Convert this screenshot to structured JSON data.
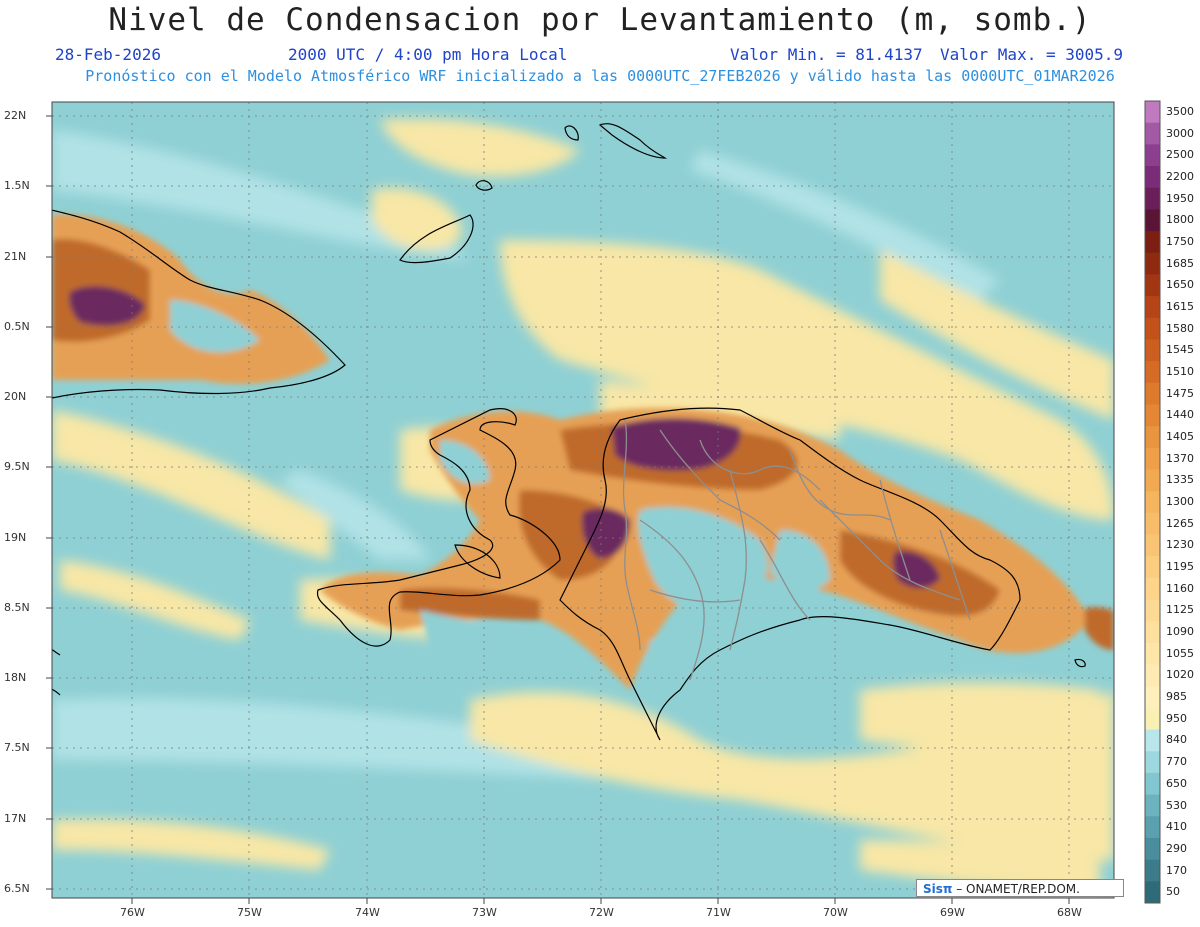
{
  "header": {
    "title": "Nivel de Condensacion por Levantamiento (m, somb.)",
    "date": "28-Feb-2026",
    "time": "2000 UTC / 4:00 pm Hora Local",
    "min_label": "Valor Min. = 81.4137",
    "max_label": "Valor Max. = 3005.9",
    "model_line": "Pronóstico con el Modelo Atmosférico WRF inicializado a las 0000UTC_27FEB2026 y válido hasta las  0000UTC_01MAR2026"
  },
  "credit": {
    "logo_text": "Sisπ",
    "text": "– ONAMET/REP.DOM."
  },
  "axes": {
    "lat_ticks": [
      "22N",
      "1.5N",
      "21N",
      "0.5N",
      "20N",
      "9.5N",
      "19N",
      "8.5N",
      "18N",
      "7.5N",
      "17N",
      "6.5N"
    ],
    "lon_ticks": [
      "76W",
      "75W",
      "74W",
      "73W",
      "72W",
      "71W",
      "70W",
      "69W",
      "68W"
    ]
  },
  "colorbar": {
    "levels": [
      "3500",
      "3000",
      "2500",
      "2200",
      "1950",
      "1800",
      "1750",
      "1685",
      "1650",
      "1615",
      "1580",
      "1545",
      "1510",
      "1475",
      "1440",
      "1405",
      "1370",
      "1335",
      "1300",
      "1265",
      "1230",
      "1195",
      "1160",
      "1125",
      "1090",
      "1055",
      "1020",
      "985",
      "950",
      "840",
      "770",
      "650",
      "530",
      "410",
      "290",
      "170",
      "50"
    ],
    "colors": [
      "#c07ac0",
      "#a35aa6",
      "#8c3f8f",
      "#7a2c78",
      "#6a1f5a",
      "#5a1436",
      "#7c1f12",
      "#8e2a10",
      "#a33612",
      "#b54416",
      "#c2511a",
      "#cc5e20",
      "#d56c26",
      "#dd7a2c",
      "#e48734",
      "#e9943e",
      "#ee9f48",
      "#f2aa52",
      "#f5b45e",
      "#f7bd6a",
      "#f9c574",
      "#fbcd80",
      "#fcd48a",
      "#fdda94",
      "#fde09e",
      "#fee5a8",
      "#feeab2",
      "#feefbc",
      "#f9f0b4",
      "#b8e6ea",
      "#9cd8de",
      "#82c6cf",
      "#6cb3bf",
      "#5aa0ae",
      "#4a8d9c",
      "#3c7c8a",
      "#2f6a78"
    ]
  },
  "field_colors": {
    "teal": "#8fd0d4",
    "lightteal": "#b0e2e6",
    "yellow": "#f8e7a6",
    "orange": "#e6a055",
    "brown": "#bf6a2a",
    "purple": "#6b2a5e"
  }
}
